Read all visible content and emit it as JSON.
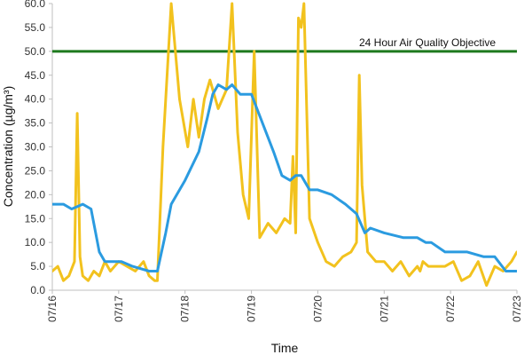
{
  "chart_data": {
    "type": "line",
    "title": "",
    "xlabel": "Time",
    "ylabel": "Concentration (µg/m³)",
    "ylim": [
      0,
      60
    ],
    "y_ticks": [
      "0.0",
      "5.0",
      "10.0",
      "15.0",
      "20.0",
      "25.0",
      "30.0",
      "35.0",
      "40.0",
      "45.0",
      "50.0",
      "55.0",
      "60.0"
    ],
    "x_ticks": [
      "07/16",
      "07/17",
      "07/18",
      "07/19",
      "07/20",
      "07/21",
      "07/22",
      "07/23"
    ],
    "xlim": [
      "07/16",
      "07/23"
    ],
    "grid": false,
    "reference_line": {
      "value": 50,
      "label": "24 Hour Air Quality Objective",
      "color": "#1e7a1e"
    },
    "series": [
      {
        "color": "#f2c21e",
        "x": [
          "07/16 00:00",
          "07/16 02:00",
          "07/16 04:00",
          "07/16 06:00",
          "07/16 08:00",
          "07/16 09:00",
          "07/16 10:00",
          "07/16 11:00",
          "07/16 13:00",
          "07/16 15:00",
          "07/16 17:00",
          "07/16 19:00",
          "07/16 21:00",
          "07/17 00:00",
          "07/17 03:00",
          "07/17 06:00",
          "07/17 09:00",
          "07/17 11:00",
          "07/17 13:00",
          "07/17 14:00",
          "07/17 16:00",
          "07/17 19:00",
          "07/17 22:00",
          "07/18 01:00",
          "07/18 03:00",
          "07/18 05:00",
          "07/18 07:00",
          "07/18 09:00",
          "07/18 12:00",
          "07/18 15:00",
          "07/18 17:00",
          "07/18 19:00",
          "07/18 21:00",
          "07/18 23:00",
          "07/19 01:00",
          "07/19 03:00",
          "07/19 06:00",
          "07/19 09:00",
          "07/19 12:00",
          "07/19 14:00",
          "07/19 15:00",
          "07/19 16:00",
          "07/19 17:00",
          "07/19 18:00",
          "07/19 19:00",
          "07/19 21:00",
          "07/20 00:00",
          "07/20 03:00",
          "07/20 06:00",
          "07/20 09:00",
          "07/20 12:00",
          "07/20 14:00",
          "07/20 15:00",
          "07/20 16:00",
          "07/20 18:00",
          "07/20 21:00",
          "07/21 00:00",
          "07/21 03:00",
          "07/21 06:00",
          "07/21 09:00",
          "07/21 12:00",
          "07/21 13:00",
          "07/21 14:00",
          "07/21 16:00",
          "07/21 19:00",
          "07/21 22:00",
          "07/22 01:00",
          "07/22 04:00",
          "07/22 07:00",
          "07/22 10:00",
          "07/22 13:00",
          "07/22 16:00",
          "07/22 19:00",
          "07/22 22:00",
          "07/23 00:00"
        ],
        "y": [
          4.0,
          5.0,
          2.0,
          3.0,
          6.0,
          37.0,
          7.0,
          3.0,
          2.0,
          4.0,
          3.0,
          6.0,
          4.0,
          6.0,
          5.0,
          4.0,
          6.0,
          3.0,
          2.0,
          2.0,
          30.0,
          60.0,
          40.0,
          30.0,
          40.0,
          32.0,
          40.0,
          44.0,
          38.0,
          42.0,
          60.0,
          33.0,
          20.0,
          15.0,
          50.0,
          11.0,
          14.0,
          12.0,
          15.0,
          14.0,
          28.0,
          12.0,
          57.0,
          55.0,
          60.0,
          15.0,
          10.0,
          6.0,
          5.0,
          7.0,
          8.0,
          10.0,
          45.0,
          22.0,
          8.0,
          6.0,
          6.0,
          4.0,
          6.0,
          3.0,
          5.0,
          4.0,
          6.0,
          5.0,
          5.0,
          5.0,
          6.0,
          2.0,
          3.0,
          6.0,
          1.0,
          5.0,
          4.0,
          6.0,
          8.0
        ]
      },
      {
        "color": "#2b9be0",
        "x": [
          "07/16 00:00",
          "07/16 04:00",
          "07/16 07:00",
          "07/16 11:00",
          "07/16 14:00",
          "07/16 17:00",
          "07/16 19:00",
          "07/17 01:00",
          "07/17 05:00",
          "07/17 11:00",
          "07/17 14:00",
          "07/17 17:00",
          "07/17 19:00",
          "07/18 00:00",
          "07/18 05:00",
          "07/18 08:00",
          "07/18 10:00",
          "07/18 12:00",
          "07/18 15:00",
          "07/18 17:00",
          "07/18 20:00",
          "07/19 00:00",
          "07/19 04:00",
          "07/19 08:00",
          "07/19 11:00",
          "07/19 14:00",
          "07/19 16:00",
          "07/19 18:00",
          "07/19 21:00",
          "07/20 00:00",
          "07/20 05:00",
          "07/20 10:00",
          "07/20 14:00",
          "07/20 17:00",
          "07/20 19:00",
          "07/21 00:00",
          "07/21 07:00",
          "07/21 12:00",
          "07/21 15:00",
          "07/21 17:00",
          "07/21 22:00",
          "07/22 06:00",
          "07/22 12:00",
          "07/22 16:00",
          "07/22 20:00",
          "07/23 00:00"
        ],
        "y": [
          18.0,
          18.0,
          17.0,
          18.0,
          17.0,
          8.0,
          6.0,
          6.0,
          5.0,
          4.0,
          4.0,
          12.0,
          18.0,
          23.0,
          29.0,
          36.0,
          41.0,
          43.0,
          42.0,
          43.0,
          41.0,
          41.0,
          35.0,
          29.0,
          24.0,
          23.0,
          24.0,
          24.0,
          21.0,
          21.0,
          20.0,
          18.0,
          16.0,
          12.0,
          13.0,
          12.0,
          11.0,
          11.0,
          10.0,
          10.0,
          8.0,
          8.0,
          7.0,
          7.0,
          4.0,
          4.0
        ]
      }
    ]
  }
}
